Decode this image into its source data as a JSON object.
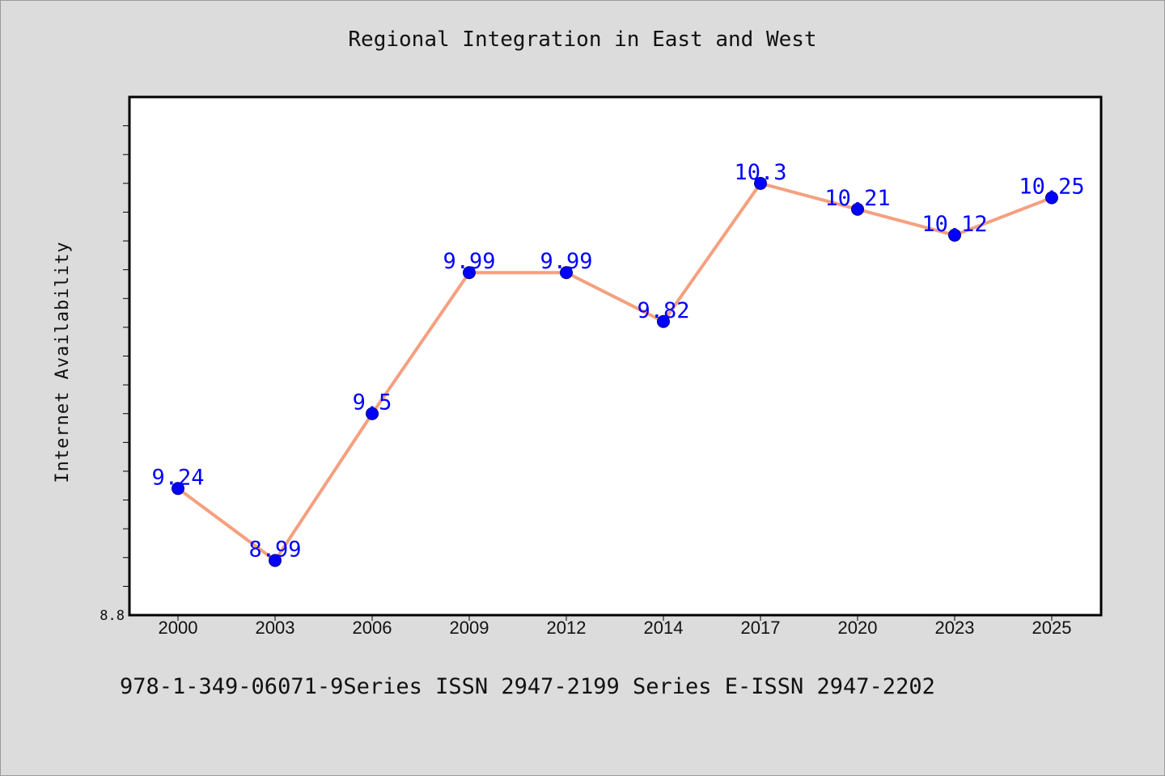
{
  "chart_data": {
    "type": "line",
    "title": "Regional Integration in East and West",
    "xlabel": "",
    "ylabel": "Internet Availability",
    "categories": [
      "2000",
      "2003",
      "2006",
      "2009",
      "2012",
      "2014",
      "2017",
      "2020",
      "2023",
      "2025"
    ],
    "series": [
      {
        "values": [
          9.24,
          8.99,
          9.5,
          9.99,
          9.99,
          9.82,
          10.3,
          10.21,
          10.12,
          10.25
        ],
        "labels": [
          "9.24",
          "8.99",
          "9.5",
          "9.99",
          "9.99",
          "9.82",
          "10.3",
          "10.21",
          "10.12",
          "10.25"
        ],
        "line_color": "#f4a07f",
        "marker_color": "#0000ff",
        "label_color": "#0000ff"
      }
    ],
    "ylim": [
      8.8,
      10.6
    ],
    "y_tick_labels": [
      "8.8"
    ],
    "grid": false,
    "footer": "978-1-349-06071-9Series ISSN 2947-2199 Series E-ISSN 2947-2202",
    "colors": {
      "background": "#dcdcdc",
      "plot_background": "#ffffff",
      "axis": "#000000"
    }
  }
}
